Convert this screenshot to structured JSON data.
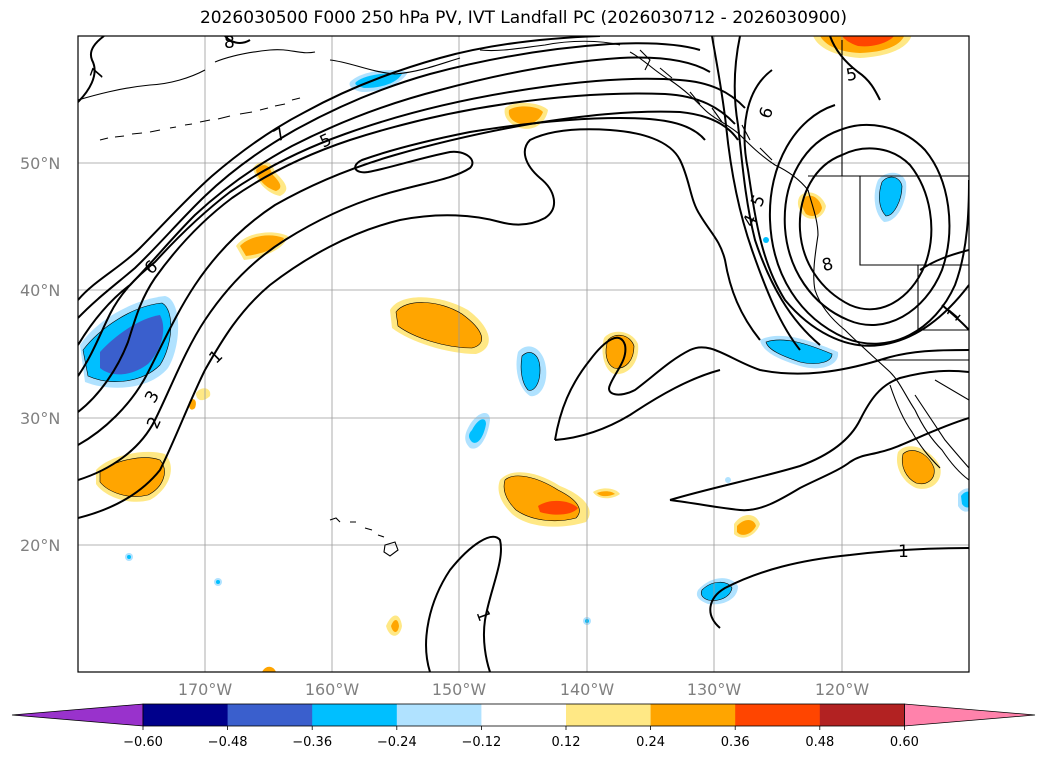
{
  "title": "2026030500 F000 250 hPa PV, IVT Landfall PC (2026030712 - 2026030900)",
  "lat_labels": [
    "50°N",
    "40°N",
    "30°N",
    "20°N"
  ],
  "lon_labels": [
    "170°W",
    "160°W",
    "150°W",
    "140°W",
    "130°W",
    "120°W"
  ],
  "contour_labels": [
    "8",
    "7",
    "7",
    "5",
    "6",
    "1",
    "3",
    "2",
    "5",
    "6",
    "5",
    "4",
    "8",
    "1",
    "1",
    "1"
  ],
  "colorbar": {
    "ticks": [
      "−0.60",
      "−0.48",
      "−0.36",
      "−0.24",
      "−0.12",
      "0.12",
      "0.24",
      "0.36",
      "0.48",
      "0.60"
    ],
    "colors": [
      "#9932cc",
      "#00008b",
      "#3a5fcd",
      "#00bfff",
      "#b0e2ff",
      "#ffffff",
      "#ffe885",
      "#ffa500",
      "#ff4500",
      "#b22222",
      "#ff82ab"
    ]
  },
  "shade_colors": {
    "orange": "#ffa500",
    "light_yellow": "#ffe885",
    "red_orange": "#ff4500",
    "deep_sky": "#00bfff",
    "light_blue": "#b0e2ff",
    "royal_blue": "#3a5fcd"
  }
}
